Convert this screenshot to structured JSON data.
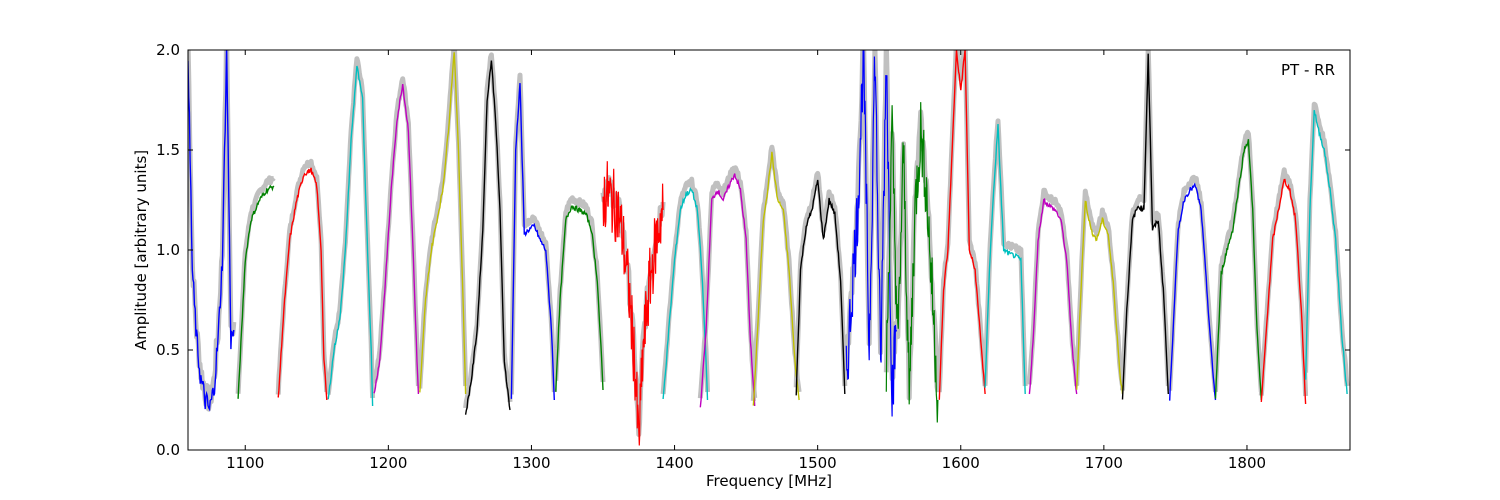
{
  "chart_data": {
    "type": "line",
    "annotation": "PT - RR",
    "xlabel": "Frequency [MHz]",
    "ylabel": "Amplitude [arbitrary units]",
    "xlim": [
      1060,
      1872
    ],
    "ylim": [
      0.0,
      2.0
    ],
    "xticks": [
      1100,
      1200,
      1300,
      1400,
      1500,
      1600,
      1700,
      1800
    ],
    "xtick_labels": [
      "1100",
      "1200",
      "1300",
      "1400",
      "1500",
      "1600",
      "1700",
      "1800"
    ],
    "yticks": [
      0.0,
      0.5,
      1.0,
      1.5,
      2.0
    ],
    "ytick_labels": [
      "0.0",
      "0.5",
      "1.0",
      "1.5",
      "2.0"
    ],
    "grid": false,
    "background_trace_color": "#c0c0c0",
    "series": [
      {
        "color": "#0000ff",
        "kind": "dip",
        "x": [
          1060,
          1063,
          1066,
          1069,
          1072,
          1075,
          1078,
          1081,
          1084,
          1087,
          1090,
          1092
        ],
        "y": [
          2.0,
          0.9,
          0.55,
          0.35,
          0.25,
          0.2,
          0.3,
          0.55,
          0.95,
          2.0,
          0.55,
          0.6
        ]
      },
      {
        "color": "#008000",
        "x": [
          1095,
          1100,
          1104,
          1110,
          1115,
          1120
        ],
        "y": [
          0.25,
          0.95,
          1.15,
          1.25,
          1.3,
          1.32
        ]
      },
      {
        "color": "#ff0000",
        "x": [
          1123,
          1127,
          1131,
          1136,
          1141,
          1146,
          1150,
          1153,
          1155,
          1157
        ],
        "y": [
          0.25,
          0.7,
          1.05,
          1.25,
          1.38,
          1.4,
          1.32,
          1.0,
          0.45,
          0.25
        ]
      },
      {
        "color": "#00bfbf",
        "x": [
          1158,
          1162,
          1166,
          1170,
          1174,
          1178,
          1182,
          1185,
          1188,
          1189
        ],
        "y": [
          0.25,
          0.5,
          0.65,
          1.0,
          1.55,
          1.92,
          1.75,
          1.1,
          0.5,
          0.22
        ]
      },
      {
        "color": "#bf00bf",
        "x": [
          1190,
          1194,
          1198,
          1202,
          1206,
          1210,
          1214,
          1217,
          1220,
          1221
        ],
        "y": [
          0.28,
          0.45,
          0.85,
          1.3,
          1.65,
          1.83,
          1.6,
          1.05,
          0.45,
          0.28
        ]
      },
      {
        "color": "#bfbf00",
        "x": [
          1222,
          1226,
          1230,
          1234,
          1238,
          1242,
          1246,
          1249,
          1252,
          1254
        ],
        "y": [
          0.28,
          0.75,
          1.0,
          1.15,
          1.3,
          1.6,
          2.0,
          1.5,
          0.8,
          0.28
        ]
      },
      {
        "color": "#000000",
        "x": [
          1254,
          1258,
          1262,
          1266,
          1269,
          1272,
          1275,
          1278,
          1281,
          1285
        ],
        "y": [
          0.18,
          0.35,
          0.6,
          1.1,
          1.75,
          1.95,
          1.65,
          1.2,
          0.45,
          0.2
        ]
      },
      {
        "color": "#0000ff",
        "x": [
          1286,
          1289,
          1292,
          1295,
          1298,
          1302,
          1306,
          1310,
          1314,
          1316
        ],
        "y": [
          0.25,
          1.5,
          1.84,
          1.08,
          1.1,
          1.12,
          1.05,
          1.0,
          0.6,
          0.25
        ]
      },
      {
        "color": "#008000",
        "x": [
          1317,
          1320,
          1324,
          1328,
          1333,
          1338,
          1342,
          1346,
          1349,
          1350
        ],
        "y": [
          0.3,
          0.75,
          1.15,
          1.22,
          1.2,
          1.18,
          1.1,
          0.85,
          0.45,
          0.3
        ]
      },
      {
        "color": "#ff0000",
        "kind": "noisy",
        "x": [
          1350,
          1353,
          1356,
          1360,
          1364,
          1368,
          1372,
          1375,
          1378,
          1382,
          1386,
          1390,
          1392
        ],
        "y": [
          1.25,
          1.28,
          1.25,
          1.2,
          1.05,
          0.8,
          0.45,
          0.03,
          0.5,
          0.8,
          1.0,
          1.15,
          1.2
        ]
      },
      {
        "color": "#00bfbf",
        "x": [
          1392,
          1396,
          1400,
          1404,
          1408,
          1412,
          1416,
          1419,
          1422,
          1423
        ],
        "y": [
          0.25,
          0.6,
          0.95,
          1.2,
          1.28,
          1.3,
          1.2,
          0.9,
          0.45,
          0.25
        ]
      },
      {
        "color": "#bf00bf",
        "x": [
          1418,
          1422,
          1426,
          1430,
          1434,
          1438,
          1442,
          1446,
          1450,
          1453,
          1456
        ],
        "y": [
          0.21,
          0.6,
          1.25,
          1.3,
          1.25,
          1.32,
          1.38,
          1.3,
          1.05,
          0.55,
          0.22
        ]
      },
      {
        "color": "#bfbf00",
        "x": [
          1455,
          1458,
          1462,
          1465,
          1468,
          1472,
          1476,
          1480,
          1484,
          1487
        ],
        "y": [
          0.21,
          0.6,
          1.15,
          1.3,
          1.48,
          1.25,
          1.2,
          0.9,
          0.45,
          0.25
        ]
      },
      {
        "color": "#000000",
        "x": [
          1485,
          1488,
          1492,
          1496,
          1500,
          1504,
          1508,
          1512,
          1516,
          1519
        ],
        "y": [
          0.28,
          0.9,
          1.12,
          1.2,
          1.35,
          1.05,
          1.25,
          1.18,
          0.85,
          0.28
        ]
      },
      {
        "color": "#0000ff",
        "kind": "noisy",
        "x": [
          1520,
          1524,
          1528,
          1532,
          1536,
          1540,
          1544,
          1548,
          1552,
          1555
        ],
        "y": [
          0.35,
          0.8,
          1.2,
          2.0,
          0.5,
          2.0,
          0.4,
          2.0,
          0.3,
          0.6
        ]
      },
      {
        "color": "#008000",
        "kind": "noisy",
        "x": [
          1548,
          1552,
          1556,
          1560,
          1564,
          1568,
          1572,
          1576,
          1580,
          1584
        ],
        "y": [
          0.4,
          1.6,
          0.5,
          1.5,
          0.25,
          1.2,
          1.6,
          1.3,
          0.8,
          0.25
        ]
      },
      {
        "color": "#ff0000",
        "x": [
          1585,
          1588,
          1591,
          1594,
          1597,
          1600,
          1603,
          1606,
          1610,
          1614,
          1617
        ],
        "y": [
          0.25,
          0.8,
          1.0,
          1.5,
          2.0,
          1.8,
          2.0,
          1.0,
          0.9,
          0.55,
          0.28
        ]
      },
      {
        "color": "#00bfbf",
        "x": [
          1617,
          1620,
          1623,
          1626,
          1630,
          1634,
          1638,
          1642,
          1645
        ],
        "y": [
          0.3,
          0.9,
          1.3,
          1.62,
          1.0,
          0.98,
          0.97,
          0.95,
          0.28
        ]
      },
      {
        "color": "#bf00bf",
        "x": [
          1648,
          1651,
          1654,
          1658,
          1662,
          1666,
          1670,
          1674,
          1678,
          1681
        ],
        "y": [
          0.28,
          0.6,
          1.05,
          1.25,
          1.22,
          1.2,
          1.15,
          0.95,
          0.5,
          0.28
        ]
      },
      {
        "color": "#bfbf00",
        "x": [
          1681,
          1684,
          1687,
          1691,
          1695,
          1699,
          1703,
          1707,
          1711,
          1713
        ],
        "y": [
          0.3,
          0.8,
          1.25,
          1.1,
          1.05,
          1.15,
          1.08,
          0.8,
          0.4,
          0.28
        ]
      },
      {
        "color": "#000000",
        "x": [
          1713,
          1716,
          1720,
          1724,
          1728,
          1731,
          1734,
          1738,
          1742,
          1745
        ],
        "y": [
          0.26,
          0.7,
          1.15,
          1.22,
          1.2,
          1.98,
          1.1,
          1.15,
          0.75,
          0.28
        ]
      },
      {
        "color": "#0000ff",
        "x": [
          1746,
          1749,
          1752,
          1756,
          1760,
          1764,
          1768,
          1772,
          1776,
          1778
        ],
        "y": [
          0.25,
          0.7,
          1.1,
          1.25,
          1.3,
          1.32,
          1.2,
          0.8,
          0.4,
          0.25
        ]
      },
      {
        "color": "#008000",
        "x": [
          1778,
          1782,
          1786,
          1790,
          1794,
          1798,
          1801,
          1804,
          1807,
          1810
        ],
        "y": [
          0.26,
          0.88,
          1.0,
          1.1,
          1.3,
          1.5,
          1.55,
          1.2,
          0.6,
          0.25
        ]
      },
      {
        "color": "#ff0000",
        "x": [
          1810,
          1814,
          1818,
          1822,
          1826,
          1830,
          1834,
          1838,
          1841
        ],
        "y": [
          0.23,
          0.65,
          1.05,
          1.2,
          1.35,
          1.3,
          1.15,
          0.7,
          0.23
        ]
      },
      {
        "color": "#00bfbf",
        "x": [
          1841,
          1844,
          1847,
          1850,
          1854,
          1858,
          1862,
          1866,
          1870
        ],
        "y": [
          0.36,
          1.2,
          1.7,
          1.6,
          1.5,
          1.3,
          1.05,
          0.6,
          0.28
        ]
      }
    ]
  }
}
